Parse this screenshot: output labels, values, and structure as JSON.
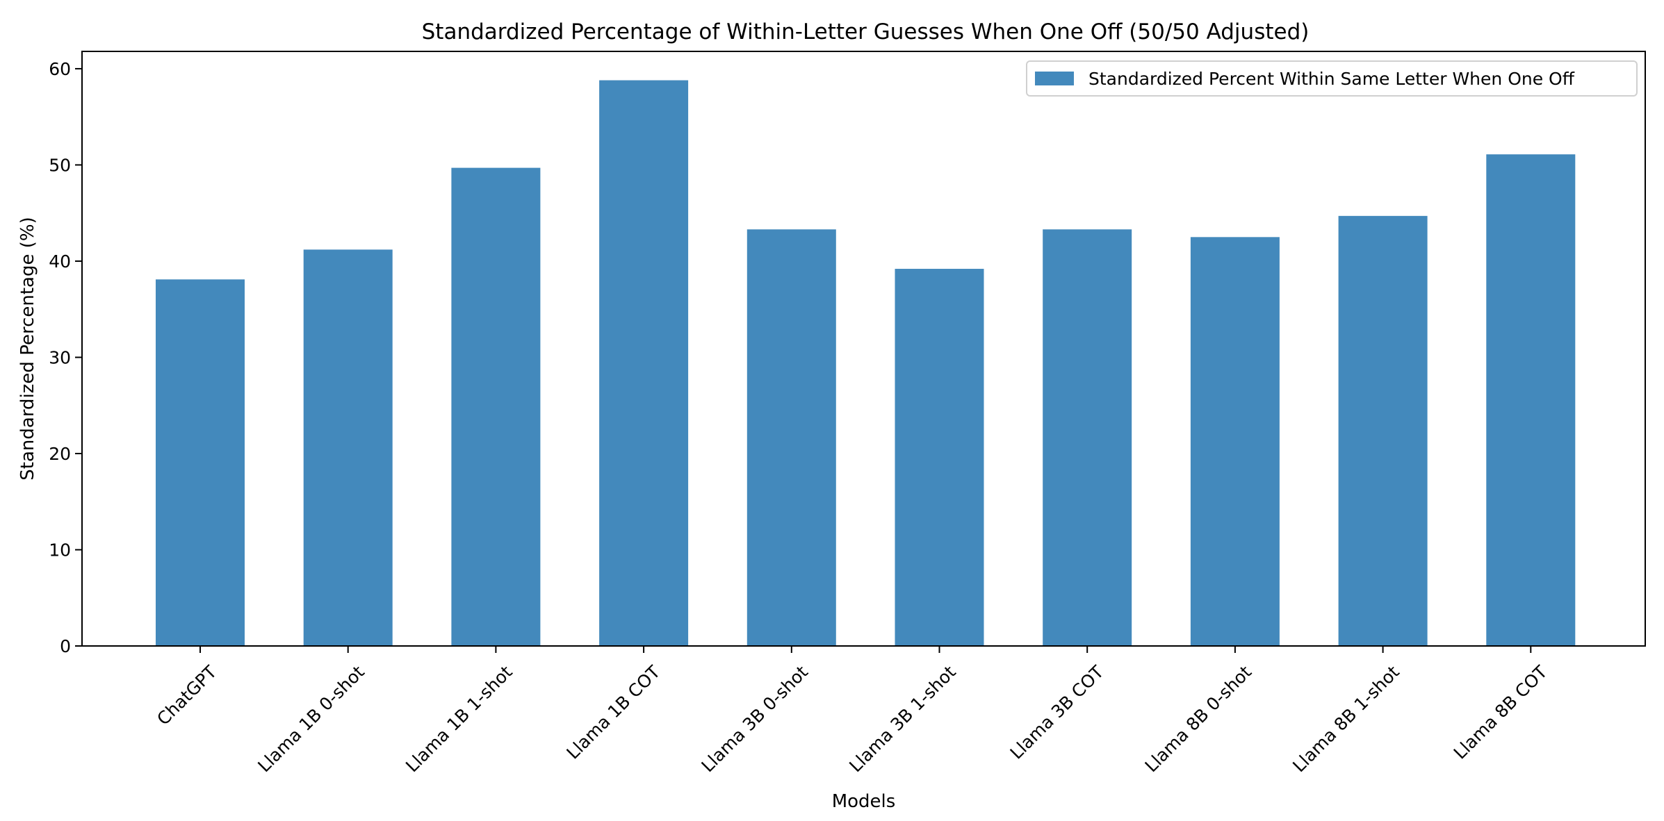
{
  "chart_data": {
    "type": "bar",
    "title": "Standardized Percentage of Within-Letter Guesses When One Off (50/50 Adjusted)",
    "xlabel": "Models",
    "ylabel": "Standardized Percentage (%)",
    "categories": [
      "ChatGPT",
      "Llama 1B 0-shot",
      "Llama 1B 1-shot",
      "Llama 1B COT",
      "Llama 3B 0-shot",
      "Llama 3B 1-shot",
      "Llama 3B COT",
      "Llama 8B 0-shot",
      "Llama 8B 1-shot",
      "Llama 8B COT"
    ],
    "series": [
      {
        "name": "Standardized Percent Within Same Letter When One Off",
        "values": [
          38.1,
          41.2,
          49.7,
          58.8,
          43.3,
          39.2,
          43.3,
          42.5,
          44.7,
          51.1
        ],
        "color": "#4389bc"
      }
    ],
    "ylim": [
      0,
      61.8
    ],
    "yticks": [
      0,
      10,
      20,
      30,
      40,
      50,
      60
    ],
    "grid": false,
    "legend_position": "top-right"
  }
}
